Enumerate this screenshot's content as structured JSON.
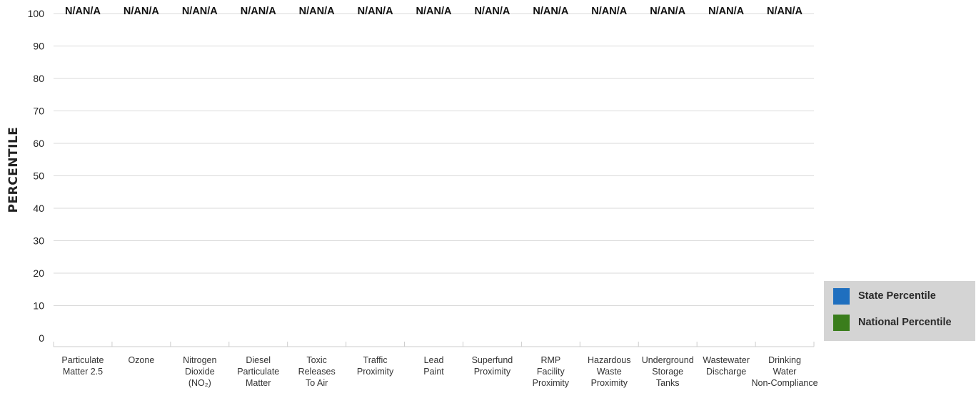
{
  "chart_data": {
    "type": "bar",
    "ylabel": "PERCENTILE",
    "ylim": [
      0,
      100
    ],
    "yticks": [
      0,
      10,
      20,
      30,
      40,
      50,
      60,
      70,
      80,
      90,
      100
    ],
    "grid": true,
    "legend_placement": "bottom-right",
    "categories": [
      [
        "Particulate",
        "Matter 2.5"
      ],
      [
        "Ozone"
      ],
      [
        "Nitrogen",
        "Dioxide",
        "(NO₂)"
      ],
      [
        "Diesel",
        "Particulate",
        "Matter"
      ],
      [
        "Toxic",
        "Releases",
        "To Air"
      ],
      [
        "Traffic",
        "Proximity"
      ],
      [
        "Lead",
        "Paint"
      ],
      [
        "Superfund",
        "Proximity"
      ],
      [
        "RMP",
        "Facility",
        "Proximity"
      ],
      [
        "Hazardous",
        "Waste",
        "Proximity"
      ],
      [
        "Underground",
        "Storage",
        "Tanks"
      ],
      [
        "Wastewater",
        "Discharge"
      ],
      [
        "Drinking",
        "Water",
        "Non-Compliance"
      ]
    ],
    "value_labels": [
      "N/AN/A",
      "N/AN/A",
      "N/AN/A",
      "N/AN/A",
      "N/AN/A",
      "N/AN/A",
      "N/AN/A",
      "N/AN/A",
      "N/AN/A",
      "N/AN/A",
      "N/AN/A",
      "N/AN/A",
      "N/AN/A"
    ],
    "series": [
      {
        "name": "State Percentile",
        "color": "#1f6fbf",
        "values": [
          null,
          null,
          null,
          null,
          null,
          null,
          null,
          null,
          null,
          null,
          null,
          null,
          null
        ]
      },
      {
        "name": "National Percentile",
        "color": "#3a7d1c",
        "values": [
          null,
          null,
          null,
          null,
          null,
          null,
          null,
          null,
          null,
          null,
          null,
          null,
          null
        ]
      }
    ]
  },
  "colors": {
    "grid": "#d9d9d9",
    "legend_background": "#d4d4d4"
  }
}
